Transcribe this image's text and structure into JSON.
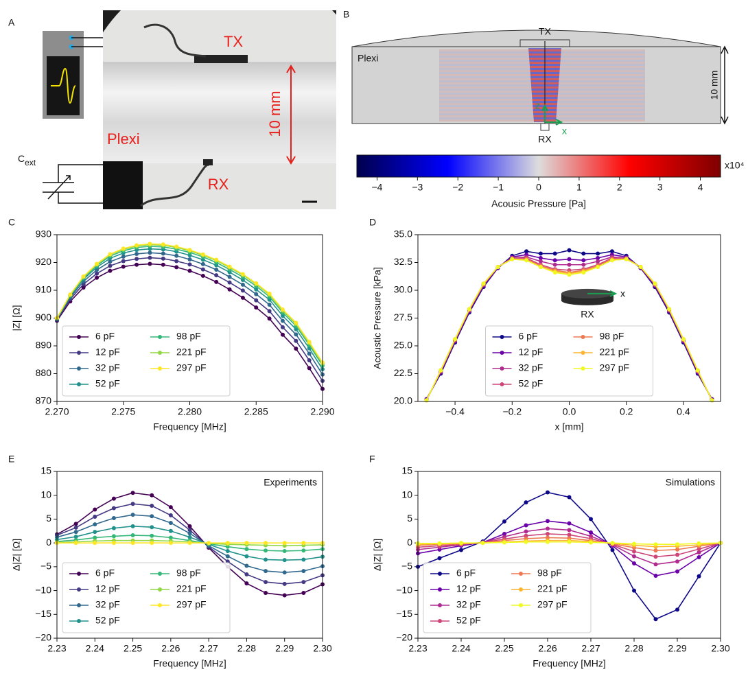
{
  "figure": {
    "panel_labels": {
      "a": "A",
      "b": "B"
    },
    "photo": {
      "tx": "TX",
      "rx": "RX",
      "plexi": "Plexi",
      "thickness": "10 mm",
      "capacitor": "C",
      "capacitor_sub": "ext"
    },
    "simulation": {
      "tx": "TX",
      "rx": "RX",
      "plexi": "Plexi",
      "thickness": "10 mm",
      "axis_x": "x",
      "axis_z": "z",
      "colorbar": {
        "lim": [
          -4.5,
          4.5
        ],
        "ticks": [
          {
            "value": -4,
            "label": "−4"
          },
          {
            "value": -3,
            "label": "−3"
          },
          {
            "value": -2,
            "label": "−2"
          },
          {
            "value": -1,
            "label": "−1"
          },
          0,
          1,
          2,
          3,
          4
        ],
        "scale_label": "x10⁴",
        "label": "Acousic Pressure [Pa]"
      }
    }
  },
  "chart_data": [
    {
      "type": "line",
      "panel_label": "C",
      "x_label": "Frequency [MHz]",
      "y_label": "|Z| [Ω]",
      "markers": true,
      "legend_loc": "lower left",
      "legend_ncol": 2,
      "xlim": [
        2.27,
        2.29
      ],
      "ylim": [
        870,
        930
      ],
      "xticks": [
        {
          "value": 2.27,
          "label": "2.270"
        },
        2.275,
        {
          "value": 2.28,
          "label": "2.280"
        },
        2.285,
        {
          "value": 2.29,
          "label": "2.290"
        }
      ],
      "yticks": [
        870,
        880,
        890,
        900,
        910,
        920,
        930
      ],
      "x": [
        2.27,
        2.271,
        2.272,
        2.273,
        2.274,
        2.275,
        2.276,
        2.277,
        2.278,
        2.279,
        2.28,
        2.281,
        2.282,
        2.283,
        2.284,
        2.285,
        2.286,
        2.287,
        2.288,
        2.289,
        2.29
      ],
      "series": [
        {
          "name": "6 pF",
          "color": "#440154",
          "values": [
            899,
            906,
            911,
            914.5,
            917,
            918.5,
            919.2,
            919.5,
            919.2,
            918.3,
            917,
            915.2,
            913,
            910.3,
            907.3,
            903.8,
            899.8,
            894,
            889,
            882,
            874.5
          ]
        },
        {
          "name": "12 pF",
          "color": "#443983",
          "values": [
            899.3,
            906.8,
            912.2,
            916.0,
            918.8,
            920.5,
            921.3,
            921.7,
            921.4,
            920.5,
            919.3,
            917.5,
            915.4,
            912.8,
            909.9,
            906.4,
            902.5,
            896.7,
            891.8,
            884.8,
            877.4
          ]
        },
        {
          "name": "32 pF",
          "color": "#31688e",
          "values": [
            899.6,
            907.4,
            913.2,
            917.3,
            920.3,
            922.1,
            923.1,
            923.5,
            923.2,
            922.4,
            921.1,
            919.4,
            917.4,
            914.8,
            912.0,
            908.6,
            904.8,
            899.0,
            894.1,
            887.2,
            879.7
          ]
        },
        {
          "name": "52 pF",
          "color": "#21918c",
          "values": [
            899.8,
            907.9,
            914.0,
            918.3,
            921.5,
            923.4,
            924.5,
            924.9,
            924.7,
            923.9,
            922.6,
            921.0,
            919.0,
            916.5,
            913.7,
            910.3,
            906.6,
            900.8,
            896.0,
            889.1,
            881.6
          ]
        },
        {
          "name": "98 pF",
          "color": "#35b779",
          "values": [
            899.9,
            908.2,
            914.5,
            918.9,
            922.3,
            924.2,
            925.4,
            925.8,
            925.6,
            924.8,
            923.6,
            922.0,
            920.0,
            917.5,
            914.8,
            911.5,
            907.7,
            902.0,
            897.2,
            890.3,
            882.9
          ]
        },
        {
          "name": "221 pF",
          "color": "#90d743",
          "values": [
            900.0,
            908.4,
            914.8,
            919.3,
            922.8,
            924.7,
            925.9,
            926.4,
            926.2,
            925.4,
            924.2,
            922.6,
            920.7,
            918.2,
            915.5,
            912.2,
            908.4,
            902.7,
            897.9,
            891.0,
            883.6
          ]
        },
        {
          "name": "297 pF",
          "color": "#fde725",
          "values": [
            900,
            908.5,
            915,
            919.5,
            923,
            925,
            926.2,
            926.7,
            926.5,
            925.7,
            924.5,
            922.9,
            921,
            918.5,
            915.8,
            912.5,
            908.8,
            903.1,
            898.3,
            891.4,
            884
          ]
        }
      ]
    },
    {
      "type": "line",
      "panel_label": "D",
      "x_label": "x [mm]",
      "y_label": "Acoustic Pressure [kPa]",
      "markers": true,
      "legend_loc": "lower center",
      "legend_ncol": 2,
      "inset": {
        "label": "RX",
        "axis": "x"
      },
      "xlim": [
        -0.53,
        0.53
      ],
      "ylim": [
        20,
        35
      ],
      "xticks": [
        {
          "value": -0.4,
          "label": "−0.4"
        },
        {
          "value": -0.2,
          "label": "−0.2"
        },
        {
          "value": 0,
          "label": "0.0"
        },
        0.2,
        0.4
      ],
      "yticks": [
        {
          "value": 20,
          "label": "20.0"
        },
        22.5,
        {
          "value": 25,
          "label": "25.0"
        },
        27.5,
        {
          "value": 30,
          "label": "30.0"
        },
        32.5,
        {
          "value": 35,
          "label": "35.0"
        }
      ],
      "x": [
        -0.5,
        -0.45,
        -0.4,
        -0.35,
        -0.3,
        -0.25,
        -0.2,
        -0.15,
        -0.1,
        -0.05,
        0,
        0.05,
        0.1,
        0.15,
        0.2,
        0.25,
        0.3,
        0.35,
        0.4,
        0.45,
        0.5
      ],
      "series": [
        {
          "name": "6 pF",
          "color": "#0d0887",
          "values": [
            20.2,
            22.5,
            25.3,
            28.0,
            30.3,
            32.0,
            33.1,
            33.5,
            33.3,
            33.3,
            33.6,
            33.3,
            33.3,
            33.5,
            33.1,
            32.0,
            30.3,
            28.0,
            25.3,
            22.5,
            20.2
          ]
        },
        {
          "name": "12 pF",
          "color": "#6a00a8",
          "values": [
            20.2,
            22.6,
            25.4,
            28.1,
            30.4,
            32.0,
            33.0,
            33.2,
            32.9,
            32.7,
            32.8,
            32.7,
            32.9,
            33.2,
            33.0,
            32.0,
            30.4,
            28.1,
            25.4,
            22.6,
            20.2
          ]
        },
        {
          "name": "32 pF",
          "color": "#b12a90",
          "values": [
            20.1,
            22.7,
            25.5,
            28.2,
            30.5,
            32.1,
            32.9,
            33.0,
            32.6,
            32.3,
            32.3,
            32.3,
            32.6,
            33.0,
            32.9,
            32.1,
            30.5,
            28.2,
            25.5,
            22.7,
            20.1
          ]
        },
        {
          "name": "52 pF",
          "color": "#cc4778",
          "values": [
            20.1,
            22.7,
            25.5,
            28.2,
            30.5,
            32.1,
            32.9,
            32.9,
            32.3,
            31.9,
            31.8,
            31.9,
            32.3,
            32.9,
            32.9,
            32.1,
            30.5,
            28.2,
            25.5,
            22.7,
            20.1
          ]
        },
        {
          "name": "98 pF",
          "color": "#ed7953",
          "values": [
            20.1,
            22.8,
            25.6,
            28.3,
            30.6,
            32.1,
            32.8,
            32.8,
            32.2,
            31.8,
            31.6,
            31.8,
            32.2,
            32.8,
            32.8,
            32.1,
            30.6,
            28.3,
            25.6,
            22.8,
            20.1
          ]
        },
        {
          "name": "221 pF",
          "color": "#fdb42f",
          "values": [
            20.1,
            22.8,
            25.6,
            28.3,
            30.6,
            32.1,
            32.8,
            32.7,
            32.1,
            31.7,
            31.5,
            31.7,
            32.1,
            32.7,
            32.8,
            32.1,
            30.6,
            28.3,
            25.6,
            22.8,
            20.1
          ]
        },
        {
          "name": "297 pF",
          "color": "#f0f921",
          "values": [
            20.1,
            22.8,
            25.6,
            28.3,
            30.6,
            32.1,
            32.8,
            32.7,
            32.1,
            31.6,
            31.4,
            31.6,
            32.1,
            32.7,
            32.8,
            32.1,
            30.6,
            28.3,
            25.6,
            22.8,
            20.1
          ]
        }
      ]
    },
    {
      "type": "line",
      "panel_label": "E",
      "x_label": "Frequency [MHz]",
      "y_label": "Δ|Z| [Ω]",
      "markers": true,
      "legend_loc": "lower left",
      "legend_ncol": 2,
      "annotation": "Experiments",
      "xlim": [
        2.23,
        2.3
      ],
      "ylim": [
        -20,
        15
      ],
      "xticks": [
        2.23,
        2.24,
        2.25,
        2.26,
        2.27,
        2.28,
        2.29,
        {
          "value": 2.3,
          "label": "2.30"
        }
      ],
      "yticks": [
        {
          "value": -20,
          "label": "−20"
        },
        {
          "value": -15,
          "label": "−15"
        },
        {
          "value": -10,
          "label": "−10"
        },
        {
          "value": -5,
          "label": "−5"
        },
        0,
        5,
        10,
        15
      ],
      "x": [
        2.23,
        2.235,
        2.24,
        2.245,
        2.25,
        2.255,
        2.26,
        2.265,
        2.27,
        2.275,
        2.28,
        2.285,
        2.29,
        2.295,
        2.3
      ],
      "series": [
        {
          "name": "6 pF",
          "color": "#440154",
          "values": [
            1.8,
            4,
            7,
            9.3,
            10.5,
            10,
            7.5,
            3.5,
            -1,
            -5,
            -8.5,
            -10.5,
            -11,
            -10.5,
            -8.7
          ]
        },
        {
          "name": "12 pF",
          "color": "#443983",
          "values": [
            1.6,
            3.2,
            5.5,
            7.3,
            8.2,
            7.8,
            5.8,
            2.7,
            -0.8,
            -3.9,
            -6.6,
            -8.2,
            -8.6,
            -8.2,
            -6.8
          ]
        },
        {
          "name": "32 pF",
          "color": "#31688e",
          "values": [
            1.2,
            2.3,
            3.9,
            5.2,
            5.9,
            5.6,
            4.2,
            2.0,
            -0.6,
            -2.8,
            -4.8,
            -5.9,
            -6.2,
            -5.9,
            -4.9
          ]
        },
        {
          "name": "52 pF",
          "color": "#21918c",
          "values": [
            0.7,
            1.3,
            2.3,
            3.1,
            3.5,
            3.3,
            2.5,
            1.2,
            -0.3,
            -1.7,
            -2.8,
            -3.5,
            -3.6,
            -3.5,
            -2.9
          ]
        },
        {
          "name": "98 pF",
          "color": "#35b779",
          "values": [
            0.3,
            0.6,
            1.1,
            1.4,
            1.6,
            1.5,
            1.1,
            0.5,
            -0.2,
            -0.8,
            -1.3,
            -1.6,
            -1.7,
            -1.6,
            -1.3
          ]
        },
        {
          "name": "221 pF",
          "color": "#90d743",
          "values": [
            0.1,
            0.2,
            0.4,
            0.5,
            0.5,
            0.5,
            0.4,
            0.2,
            -0.1,
            -0.3,
            -0.4,
            -0.5,
            -0.6,
            -0.5,
            -0.4
          ]
        },
        {
          "name": "297 pF",
          "color": "#fde725",
          "values": [
            0,
            0,
            0,
            0,
            0,
            0,
            0,
            0,
            0,
            0,
            0,
            0,
            0,
            0,
            0
          ]
        }
      ]
    },
    {
      "type": "line",
      "panel_label": "F",
      "x_label": "Frequency [MHz]",
      "y_label": "Δ|Z| [Ω]",
      "markers": true,
      "legend_loc": "lower left",
      "legend_ncol": 2,
      "annotation": "Simulations",
      "xlim": [
        2.23,
        2.3
      ],
      "ylim": [
        -20,
        15
      ],
      "xticks": [
        2.23,
        2.24,
        2.25,
        2.26,
        2.27,
        2.28,
        2.29,
        {
          "value": 2.3,
          "label": "2.30"
        }
      ],
      "yticks": [
        {
          "value": -20,
          "label": "−20"
        },
        {
          "value": -15,
          "label": "−15"
        },
        {
          "value": -10,
          "label": "−10"
        },
        {
          "value": -5,
          "label": "−5"
        },
        0,
        5,
        10,
        15
      ],
      "x": [
        2.23,
        2.235,
        2.24,
        2.245,
        2.25,
        2.255,
        2.26,
        2.265,
        2.27,
        2.275,
        2.28,
        2.285,
        2.29,
        2.295,
        2.3
      ],
      "series": [
        {
          "name": "6 pF",
          "color": "#0d0887",
          "values": [
            -5.0,
            -3.2,
            -1.5,
            0.3,
            4.5,
            8.5,
            10.6,
            9.6,
            5,
            -1.5,
            -10,
            -16,
            -14,
            -7,
            0
          ]
        },
        {
          "name": "12 pF",
          "color": "#6a00a8",
          "values": [
            -2.2,
            -1.4,
            -0.6,
            0.1,
            1.9,
            3.7,
            4.6,
            4.1,
            2.2,
            -0.6,
            -4.3,
            -6.9,
            -6.0,
            -3.0,
            0
          ]
        },
        {
          "name": "32 pF",
          "color": "#b12a90",
          "values": [
            -1.4,
            -0.9,
            -0.4,
            0.1,
            1.3,
            2.4,
            3.0,
            2.7,
            1.4,
            -0.4,
            -2.8,
            -4.5,
            -3.9,
            -2.0,
            0
          ]
        },
        {
          "name": "52 pF",
          "color": "#cc4778",
          "values": [
            -0.9,
            -0.6,
            -0.3,
            0.1,
            0.8,
            1.5,
            1.9,
            1.7,
            0.9,
            -0.3,
            -1.8,
            -2.9,
            -2.5,
            -1.3,
            0
          ]
        },
        {
          "name": "98 pF",
          "color": "#ed7953",
          "values": [
            -0.5,
            -0.3,
            -0.2,
            0,
            0.5,
            0.9,
            1.1,
            1.0,
            0.5,
            -0.2,
            -1.0,
            -1.6,
            -1.4,
            -0.7,
            0
          ]
        },
        {
          "name": "221 pF",
          "color": "#fdb42f",
          "values": [
            -0.3,
            -0.2,
            -0.1,
            0,
            0.2,
            0.4,
            0.5,
            0.5,
            0.3,
            -0.1,
            -0.5,
            -0.8,
            -0.7,
            -0.4,
            0
          ]
        },
        {
          "name": "297 pF",
          "color": "#f0f921",
          "values": [
            -0.1,
            -0.1,
            0,
            0,
            0.1,
            0.2,
            0.2,
            0.2,
            0.1,
            0,
            -0.2,
            -0.3,
            -0.3,
            -0.1,
            0
          ]
        }
      ]
    }
  ]
}
